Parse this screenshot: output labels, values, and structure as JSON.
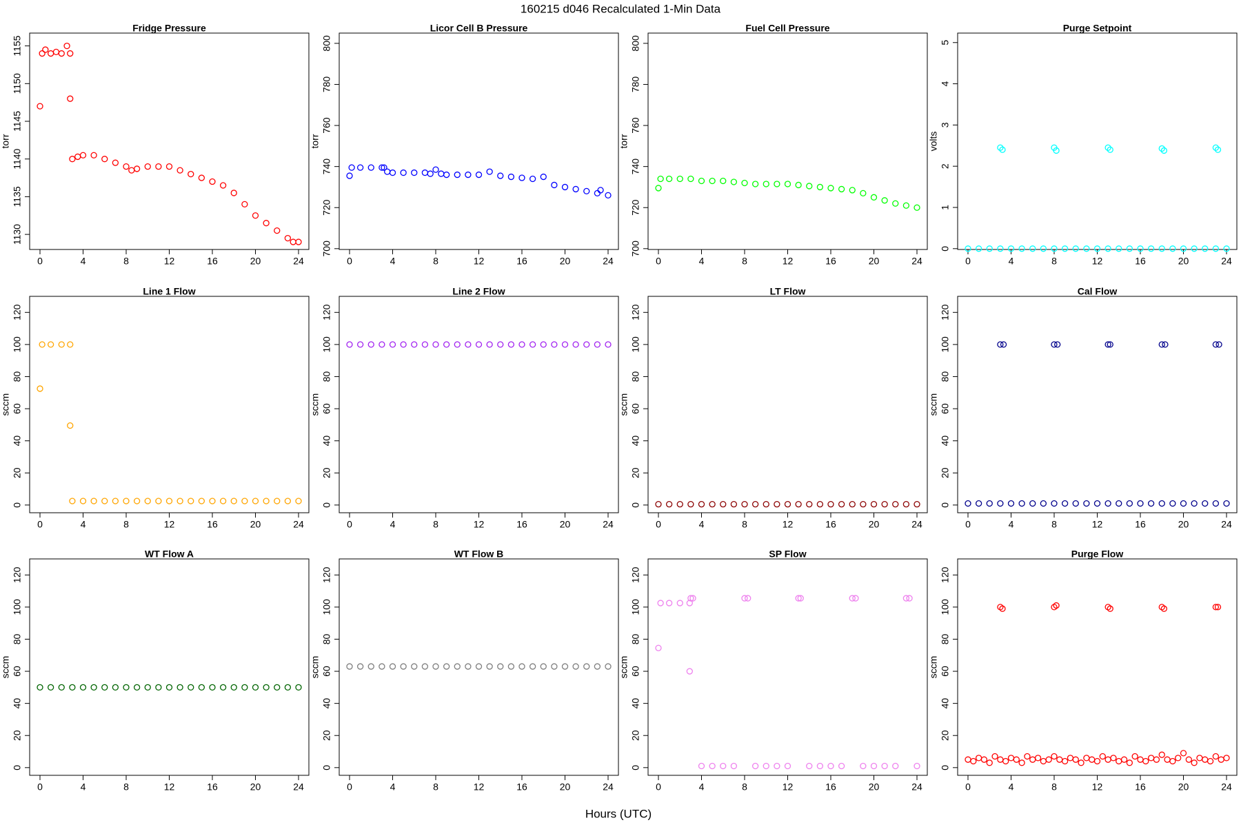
{
  "title": "160215   d046   Recalculated 1-Min Data",
  "x_label": "Hours (UTC)",
  "chart_data": [
    {
      "type": "scatter",
      "title": "Fridge Pressure",
      "y_label": "torr",
      "color": "#ff0000",
      "x": [
        0,
        0.2,
        0.5,
        1,
        1.5,
        2,
        2.5,
        2.8,
        2.8,
        3,
        3.5,
        4,
        5,
        6,
        7,
        8,
        8.5,
        9,
        10,
        11,
        12,
        13,
        14,
        15,
        16,
        17,
        18,
        19,
        20,
        21,
        22,
        23,
        23.5,
        24
      ],
      "values": [
        1147,
        1154,
        1154.5,
        1154,
        1154.2,
        1154,
        1155,
        1154,
        1148,
        1140,
        1140.3,
        1140.5,
        1140.5,
        1140,
        1139.5,
        1139,
        1138.5,
        1138.7,
        1139,
        1139,
        1139,
        1138.5,
        1138,
        1137.5,
        1137,
        1136.5,
        1135.5,
        1134,
        1132.5,
        1131.5,
        1130.5,
        1129.5,
        1129,
        1129
      ],
      "xlim": [
        -0.96,
        24.96
      ],
      "ylim": [
        1128,
        1156.7
      ],
      "xticks": [
        0,
        4,
        8,
        12,
        16,
        20,
        24
      ],
      "yticks": [
        1130,
        1135,
        1140,
        1145,
        1150,
        1155
      ]
    },
    {
      "type": "scatter",
      "title": "Licor Cell B Pressure",
      "y_label": "torr",
      "color": "#0000ff",
      "x": [
        0,
        0.2,
        1,
        2,
        3,
        3.2,
        3.5,
        4,
        5,
        6,
        7,
        7.5,
        8,
        8.5,
        9,
        10,
        11,
        12,
        13,
        14,
        15,
        16,
        17,
        18,
        19,
        20,
        21,
        22,
        23,
        23.3,
        24
      ],
      "values": [
        735.5,
        739.5,
        739.5,
        739.5,
        739.5,
        739.5,
        737.5,
        737,
        737,
        737,
        737,
        736.5,
        738.5,
        736.5,
        736,
        736,
        736,
        736,
        737.5,
        735.5,
        735,
        734.5,
        734,
        735,
        731,
        730,
        729,
        728,
        727,
        728.5,
        726
      ],
      "xlim": [
        -0.96,
        24.96
      ],
      "ylim": [
        699.6,
        805
      ],
      "xticks": [
        0,
        4,
        8,
        12,
        16,
        20,
        24
      ],
      "yticks": [
        700,
        720,
        740,
        760,
        780,
        800
      ]
    },
    {
      "type": "scatter",
      "title": "Fuel Cell Pressure",
      "y_label": "torr",
      "color": "#00ff00",
      "x": [
        0,
        0.2,
        1,
        2,
        3,
        4,
        5,
        6,
        7,
        8,
        9,
        10,
        11,
        12,
        13,
        14,
        15,
        16,
        17,
        18,
        19,
        20,
        21,
        22,
        23,
        24
      ],
      "values": [
        729.5,
        734,
        734,
        734,
        734,
        733,
        733,
        733,
        732.5,
        732,
        731.5,
        731.5,
        731.5,
        731.5,
        731,
        730.5,
        730,
        729.5,
        729,
        728.5,
        727,
        725,
        723.5,
        722,
        721,
        720
      ],
      "xlim": [
        -0.96,
        24.96
      ],
      "ylim": [
        699.6,
        805
      ],
      "xticks": [
        0,
        4,
        8,
        12,
        16,
        20,
        24
      ],
      "yticks": [
        700,
        720,
        740,
        760,
        780,
        800
      ]
    },
    {
      "type": "scatter",
      "title": "Purge Setpoint",
      "y_label": "volts",
      "color": "#00ffff",
      "x": [
        0,
        1,
        2,
        3,
        4,
        5,
        6,
        7,
        8,
        9,
        10,
        11,
        12,
        13,
        14,
        15,
        16,
        17,
        18,
        19,
        20,
        21,
        22,
        23,
        24,
        3,
        3.2,
        8,
        8.2,
        13,
        13.2,
        18,
        18.2,
        23,
        23.2
      ],
      "values": [
        0,
        0,
        0,
        0,
        0,
        0,
        0,
        0,
        0,
        0,
        0,
        0,
        0,
        0,
        0,
        0,
        0,
        0,
        0,
        0,
        0,
        0,
        0,
        0,
        0,
        2.45,
        2.4,
        2.45,
        2.38,
        2.45,
        2.4,
        2.43,
        2.38,
        2.45,
        2.4
      ],
      "xlim": [
        -0.96,
        24.96
      ],
      "ylim": [
        -0.02,
        5.23
      ],
      "xticks": [
        0,
        4,
        8,
        12,
        16,
        20,
        24
      ],
      "yticks": [
        0,
        1,
        2,
        3,
        4,
        5
      ]
    },
    {
      "type": "scatter",
      "title": "Line 1 Flow",
      "y_label": "sccm",
      "color": "#ffa500",
      "x": [
        0,
        0.2,
        1,
        2,
        2.8,
        2.8,
        3,
        4,
        5,
        6,
        7,
        8,
        9,
        10,
        11,
        12,
        13,
        14,
        15,
        16,
        17,
        18,
        19,
        20,
        21,
        22,
        23,
        24
      ],
      "values": [
        72.5,
        100,
        100,
        100,
        100,
        49.5,
        2.5,
        2.5,
        2.5,
        2.5,
        2.5,
        2.5,
        2.5,
        2.5,
        2.5,
        2.5,
        2.5,
        2.5,
        2.5,
        2.5,
        2.5,
        2.5,
        2.5,
        2.5,
        2.5,
        2.5,
        2.5,
        2.5
      ],
      "xlim": [
        -0.96,
        24.96
      ],
      "ylim": [
        -4.8,
        130
      ],
      "xticks": [
        0,
        4,
        8,
        12,
        16,
        20,
        24
      ],
      "yticks": [
        0,
        20,
        40,
        60,
        80,
        100,
        120
      ]
    },
    {
      "type": "scatter",
      "title": "Line 2 Flow",
      "y_label": "sccm",
      "color": "#a020f0",
      "x": [
        0,
        1,
        2,
        3,
        4,
        5,
        6,
        7,
        8,
        9,
        10,
        11,
        12,
        13,
        14,
        15,
        16,
        17,
        18,
        19,
        20,
        21,
        22,
        23,
        24
      ],
      "values": [
        100,
        100,
        100,
        100,
        100,
        100,
        100,
        100,
        100,
        100,
        100,
        100,
        100,
        100,
        100,
        100,
        100,
        100,
        100,
        100,
        100,
        100,
        100,
        100,
        100
      ],
      "xlim": [
        -0.96,
        24.96
      ],
      "ylim": [
        -4.8,
        130
      ],
      "xticks": [
        0,
        4,
        8,
        12,
        16,
        20,
        24
      ],
      "yticks": [
        0,
        20,
        40,
        60,
        80,
        100,
        120
      ]
    },
    {
      "type": "scatter",
      "title": "LT Flow",
      "y_label": "sccm",
      "color": "#8b0000",
      "x": [
        0,
        1,
        2,
        3,
        4,
        5,
        6,
        7,
        8,
        9,
        10,
        11,
        12,
        13,
        14,
        15,
        16,
        17,
        18,
        19,
        20,
        21,
        22,
        23,
        24
      ],
      "values": [
        0.5,
        0.5,
        0.5,
        0.5,
        0.5,
        0.5,
        0.5,
        0.5,
        0.5,
        0.5,
        0.5,
        0.5,
        0.5,
        0.5,
        0.5,
        0.5,
        0.5,
        0.5,
        0.5,
        0.5,
        0.5,
        0.5,
        0.5,
        0.5,
        0.5
      ],
      "xlim": [
        -0.96,
        24.96
      ],
      "ylim": [
        -4.8,
        130
      ],
      "xticks": [
        0,
        4,
        8,
        12,
        16,
        20,
        24
      ],
      "yticks": [
        0,
        20,
        40,
        60,
        80,
        100,
        120
      ]
    },
    {
      "type": "scatter",
      "title": "Cal Flow",
      "y_label": "sccm",
      "color": "#00008b",
      "x": [
        0,
        1,
        2,
        3,
        4,
        5,
        6,
        7,
        8,
        9,
        10,
        11,
        12,
        13,
        14,
        15,
        16,
        17,
        18,
        19,
        20,
        21,
        22,
        23,
        24,
        3,
        3.3,
        8,
        8.3,
        13,
        13.2,
        18,
        18.3,
        23,
        23.3
      ],
      "values": [
        1,
        1,
        1,
        1,
        1,
        1,
        1,
        1,
        1,
        1,
        1,
        1,
        1,
        1,
        1,
        1,
        1,
        1,
        1,
        1,
        1,
        1,
        1,
        1,
        1,
        100,
        100,
        100,
        100,
        100,
        100,
        100,
        100,
        100,
        100
      ],
      "xlim": [
        -0.96,
        24.96
      ],
      "ylim": [
        -4.8,
        130
      ],
      "xticks": [
        0,
        4,
        8,
        12,
        16,
        20,
        24
      ],
      "yticks": [
        0,
        20,
        40,
        60,
        80,
        100,
        120
      ]
    },
    {
      "type": "scatter",
      "title": "WT Flow A",
      "y_label": "sccm",
      "color": "#006400",
      "x": [
        0,
        1,
        2,
        3,
        4,
        5,
        6,
        7,
        8,
        9,
        10,
        11,
        12,
        13,
        14,
        15,
        16,
        17,
        18,
        19,
        20,
        21,
        22,
        23,
        24
      ],
      "values": [
        50,
        50,
        50,
        50,
        50,
        50,
        50,
        50,
        50,
        50,
        50,
        50,
        50,
        50,
        50,
        50,
        50,
        50,
        50,
        50,
        50,
        50,
        50,
        50,
        50
      ],
      "xlim": [
        -0.96,
        24.96
      ],
      "ylim": [
        -4.8,
        130
      ],
      "xticks": [
        0,
        4,
        8,
        12,
        16,
        20,
        24
      ],
      "yticks": [
        0,
        20,
        40,
        60,
        80,
        100,
        120
      ]
    },
    {
      "type": "scatter",
      "title": "WT Flow B",
      "y_label": "sccm",
      "color": "#7f7f7f",
      "x": [
        0,
        1,
        2,
        3,
        4,
        5,
        6,
        7,
        8,
        9,
        10,
        11,
        12,
        13,
        14,
        15,
        16,
        17,
        18,
        19,
        20,
        21,
        22,
        23,
        24
      ],
      "values": [
        63,
        63,
        63,
        63,
        63,
        63,
        63,
        63,
        63,
        63,
        63,
        63,
        63,
        63,
        63,
        63,
        63,
        63,
        63,
        63,
        63,
        63,
        63,
        63,
        63
      ],
      "xlim": [
        -0.96,
        24.96
      ],
      "ylim": [
        -4.8,
        130
      ],
      "xticks": [
        0,
        4,
        8,
        12,
        16,
        20,
        24
      ],
      "yticks": [
        0,
        20,
        40,
        60,
        80,
        100,
        120
      ]
    },
    {
      "type": "scatter",
      "title": "SP Flow",
      "y_label": "sccm",
      "color": "#ee82ee",
      "x": [
        0,
        0.2,
        1,
        2,
        2.9,
        2.9,
        3,
        3.2,
        4,
        5,
        6,
        7,
        8,
        8.3,
        9,
        10,
        11,
        12,
        13,
        13.2,
        14,
        15,
        16,
        17,
        18,
        18.3,
        19,
        20,
        21,
        22,
        23,
        23.3,
        24
      ],
      "values": [
        74.5,
        102.5,
        102.5,
        102.5,
        102.5,
        60,
        105.5,
        105.5,
        1,
        1,
        1,
        1,
        105.5,
        105.5,
        1,
        1,
        1,
        1,
        105.5,
        105.5,
        1,
        1,
        1,
        1,
        105.5,
        105.5,
        1,
        1,
        1,
        1,
        105.5,
        105.5,
        1
      ],
      "xlim": [
        -0.96,
        24.96
      ],
      "ylim": [
        -4.8,
        130
      ],
      "xticks": [
        0,
        4,
        8,
        12,
        16,
        20,
        24
      ],
      "yticks": [
        0,
        20,
        40,
        60,
        80,
        100,
        120
      ]
    },
    {
      "type": "scatter",
      "title": "Purge Flow",
      "y_label": "sccm",
      "color": "#ff0000",
      "x": [
        0,
        0.5,
        1,
        1.5,
        2,
        2.5,
        3,
        3.5,
        4,
        4.5,
        5,
        5.5,
        6,
        6.5,
        7,
        7.5,
        8,
        8.5,
        9,
        9.5,
        10,
        10.5,
        11,
        11.5,
        12,
        12.5,
        13,
        13.5,
        14,
        14.5,
        15,
        15.5,
        16,
        16.5,
        17,
        17.5,
        18,
        18.5,
        19,
        19.5,
        20,
        20.5,
        21,
        21.5,
        22,
        22.5,
        23,
        23.5,
        24,
        3,
        3.2,
        8,
        8.2,
        13,
        13.2,
        18,
        18.2,
        23,
        23.2
      ],
      "values": [
        5,
        4,
        6,
        5,
        3,
        7,
        5,
        4,
        6,
        5,
        3,
        7,
        5,
        6,
        4,
        5,
        7,
        5,
        4,
        6,
        5,
        3,
        6,
        5,
        4,
        7,
        5,
        6,
        4,
        5,
        3,
        7,
        5,
        4,
        6,
        5,
        8,
        5,
        4,
        6,
        9,
        5,
        3,
        6,
        5,
        4,
        7,
        5,
        6,
        100,
        99,
        100,
        101,
        100,
        99,
        100,
        99,
        100,
        100
      ],
      "xlim": [
        -0.96,
        24.96
      ],
      "ylim": [
        -4.8,
        130
      ],
      "xticks": [
        0,
        4,
        8,
        12,
        16,
        20,
        24
      ],
      "yticks": [
        0,
        20,
        40,
        60,
        80,
        100,
        120
      ]
    }
  ]
}
